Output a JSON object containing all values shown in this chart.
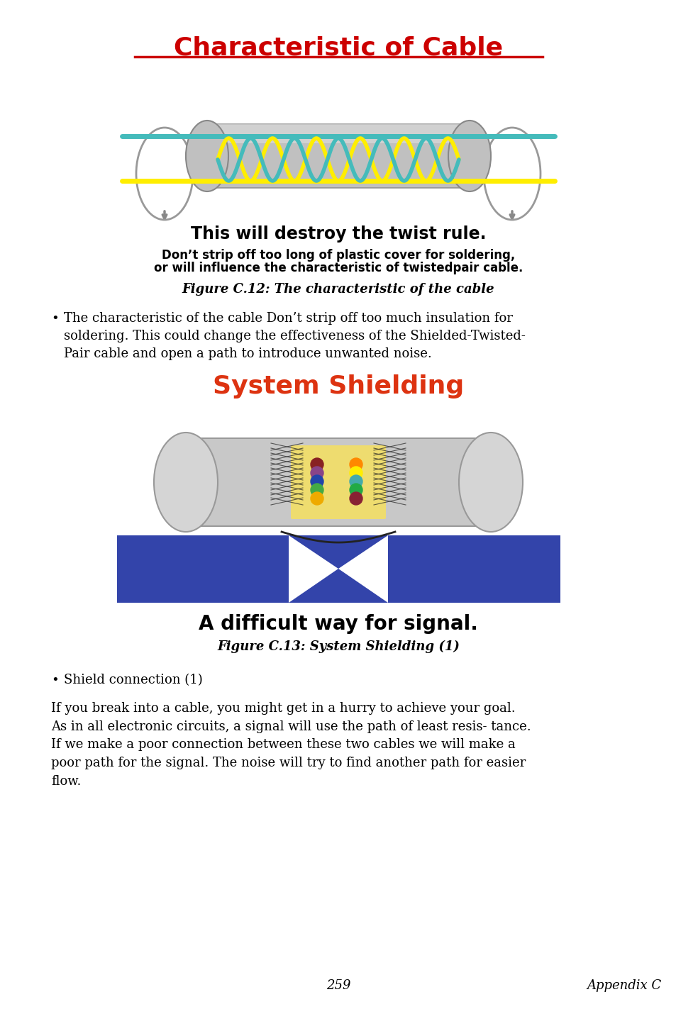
{
  "page_bg": "#ffffff",
  "title1": "Characteristic of Cable",
  "title1_color": "#cc0000",
  "title1_underline_color": "#cc0000",
  "subtitle1": "This will destroy the twist rule.",
  "subtitle1_color": "#000000",
  "warning1_line1": "Don’t strip off too long of plastic cover for soldering,",
  "warning1_line2": "or will influence the characteristic of twistedpair cable.",
  "fig_caption1": "Figure C.12: The characteristic of the cable",
  "bullet1_text": "•  The characteristic of the cable Don’t strip off too much insulation for soldering. This could change the effectiveness of the Shielded-Twisted-Pair cable and open a path to introduce unwanted noise.",
  "title2": "System Shielding",
  "title2_color": "#dd3311",
  "subtitle2": "A difficult way for signal.",
  "subtitle2_color": "#000000",
  "fig_caption2": "Figure C.13: System Shielding (1)",
  "bullet2_text": "•  Shield connection (1)",
  "paragraph2": "If you break into a cable, you might get in a hurry to achieve your goal. As in all electronic circuits, a signal will use the path of least resis- tance. If we make a poor connection between these two cables we will make a poor path for the signal. The noise will try to find another path for easier flow.",
  "footer_page": "259",
  "footer_appendix": "Appendix C",
  "cyan_color": "#44BBBB",
  "yellow_color": "#FFEE00",
  "gray_cable": "#AAAAAA",
  "blue_rect": "#3344AA"
}
